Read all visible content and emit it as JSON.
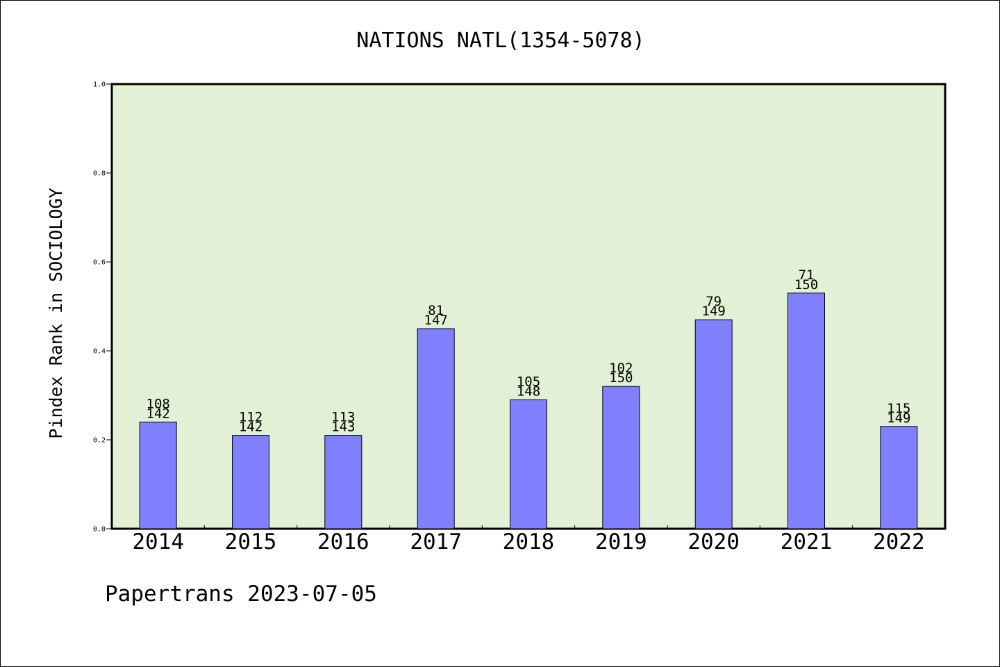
{
  "chart_data": {
    "type": "bar",
    "title": "NATIONS NATL(1354-5078)",
    "ylabel": "Pindex Rank in SOCIOLOGY",
    "xlabel": "",
    "categories": [
      "2014",
      "2015",
      "2016",
      "2017",
      "2018",
      "2019",
      "2020",
      "2021",
      "2022"
    ],
    "values": [
      0.24,
      0.21,
      0.21,
      0.45,
      0.29,
      0.32,
      0.47,
      0.53,
      0.23
    ],
    "rank_labels": [
      "108",
      "112",
      "113",
      "81",
      "105",
      "102",
      "79",
      "71",
      "115"
    ],
    "total_labels": [
      "142",
      "142",
      "143",
      "147",
      "148",
      "150",
      "149",
      "150",
      "149"
    ],
    "ylim": [
      0,
      1.0
    ],
    "yticks": [
      "0.0",
      "0.2",
      "0.4",
      "0.6",
      "0.8",
      "1.0"
    ],
    "grid": false,
    "legend": "none",
    "colors": {
      "bar_fill": "#8080ff",
      "plot_background": "#e2f0d6",
      "axis": "#000000"
    }
  },
  "footer": {
    "credit": "Papertrans 2023-07-05"
  }
}
